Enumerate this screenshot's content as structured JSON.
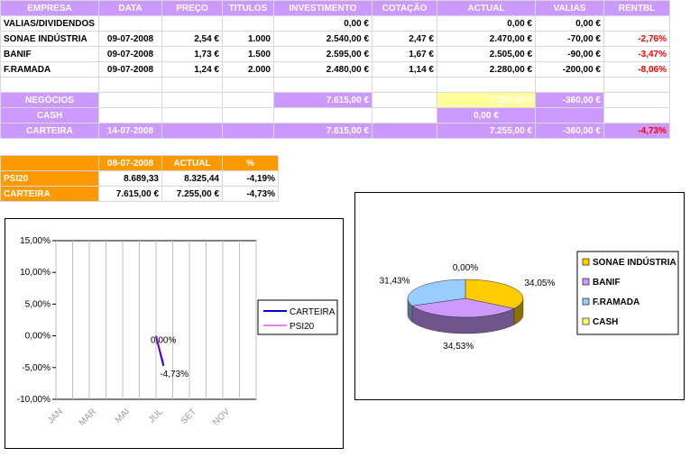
{
  "main_table": {
    "headers": [
      "EMPRESA",
      "DATA",
      "PREÇO",
      "TITULOS",
      "INVESTIMENTO",
      "COTAÇÃO",
      "ACTUAL",
      "VALIAS",
      "RENTBL"
    ],
    "valias_row": {
      "label": "VALIAS/DIVIDENDOS",
      "investimento": "0,00 €",
      "actual": "0,00 €",
      "valias": "0,00 €"
    },
    "stocks": [
      {
        "empresa": "SONAE INDÚSTRIA",
        "data": "09-07-2008",
        "preco": "2,54 €",
        "titulos": "1.000",
        "investimento": "2.540,00 €",
        "cotacao": "2,47 €",
        "actual": "2.470,00 €",
        "valias": "-70,00 €",
        "rentbl": "-2,76%"
      },
      {
        "empresa": "BANIF",
        "data": "09-07-2008",
        "preco": "1,73 €",
        "titulos": "1.500",
        "investimento": "2.595,00 €",
        "cotacao": "1,67 €",
        "actual": "2.505,00 €",
        "valias": "-90,00 €",
        "rentbl": "-3,47%"
      },
      {
        "empresa": "F.RAMADA",
        "data": "09-07-2008",
        "preco": "1,24 €",
        "titulos": "2.000",
        "investimento": "2.480,00 €",
        "cotacao": "1,14 €",
        "actual": "2.280,00 €",
        "valias": "-200,00 €",
        "rentbl": "-8,06%"
      }
    ],
    "negocios": {
      "label": "NEGÓCIOS",
      "investimento": "7.615,00 €",
      "actual": "7.255,00 €",
      "valias": "-360,00 €"
    },
    "cash": {
      "label": "CASH",
      "actual": "0,00 €"
    },
    "carteira": {
      "label": "CARTEIRA",
      "data": "14-07-2008",
      "investimento": "7.615,00 €",
      "actual": "7.255,00 €",
      "valias": "-360,00 €",
      "rentbl": "-4,73%"
    }
  },
  "summary_table": {
    "headers": [
      "",
      "08-07-2008",
      "ACTUAL",
      "%"
    ],
    "rows": [
      {
        "label": "PSI20",
        "start": "8.689,33",
        "actual": "8.325,44",
        "pct": "-4,19%"
      },
      {
        "label": "CARTEIRA",
        "start": "7.615,00 €",
        "actual": "7.255,00 €",
        "pct": "-4,73%"
      }
    ]
  },
  "chart_data": [
    {
      "type": "line",
      "x_ticks": [
        "JAN",
        "MAR",
        "MAI",
        "JUL",
        "SET",
        "NOV"
      ],
      "y_ticks": [
        "15,00%",
        "10,00%",
        "5,00%",
        "0,00%",
        "-5,00%",
        "-10,00%"
      ],
      "ylim": [
        -10,
        15
      ],
      "series": [
        {
          "name": "CARTEIRA",
          "color": "#0000cc",
          "points": [
            [
              6.0,
              0.0
            ],
            [
              6.45,
              -4.73
            ]
          ]
        },
        {
          "name": "PSI20",
          "color": "#cc00cc",
          "points": [
            [
              6.0,
              0.0
            ],
            [
              6.45,
              -4.19
            ]
          ]
        }
      ],
      "labels": [
        "0,00%",
        "-4,73%"
      ],
      "legend": "right"
    },
    {
      "type": "pie",
      "slices": [
        {
          "name": "SONAE INDÚSTRIA",
          "value": 34.05,
          "label": "34,05%",
          "color": "#ffcc00"
        },
        {
          "name": "BANIF",
          "value": 34.53,
          "label": "34,53%",
          "color": "#cc99ff"
        },
        {
          "name": "F.RAMADA",
          "value": 31.43,
          "label": "31,43%",
          "color": "#99ccff"
        },
        {
          "name": "CASH",
          "value": 0.0,
          "label": "0,00%",
          "color": "#ffff66"
        }
      ],
      "legend": "right"
    }
  ]
}
